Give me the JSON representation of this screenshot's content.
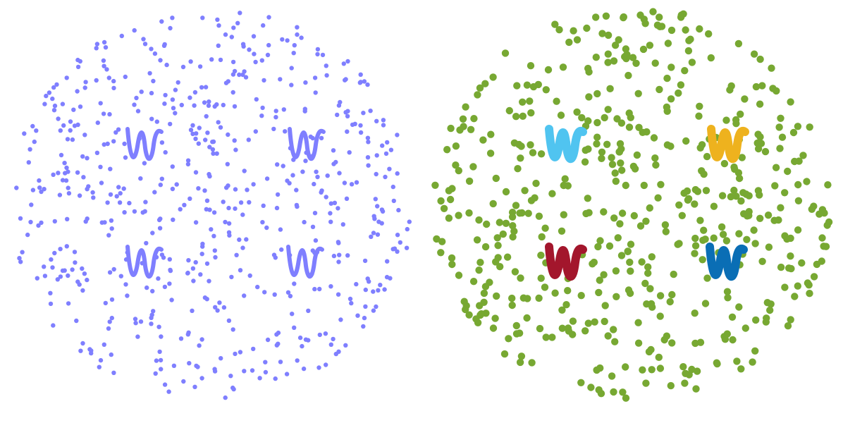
{
  "figure": {
    "panels": [
      {
        "id": "left",
        "description_visible_text": "",
        "dot_color": "#7F7FFF",
        "dot_count": 620,
        "seed": 12345,
        "pattern_color_mode": "uniform",
        "patterns": [
          {
            "color": "#7F7FFF"
          },
          {
            "color": "#7F7FFF"
          },
          {
            "color": "#7F7FFF"
          },
          {
            "color": "#7F7FFF"
          }
        ]
      },
      {
        "id": "right",
        "description_visible_text": "",
        "dot_color": "#77A832",
        "dot_count": 520,
        "seed": 67890,
        "pattern_color_mode": "distinct",
        "patterns": [
          {
            "color": "#50C4F0"
          },
          {
            "color": "#EEB21E"
          },
          {
            "color": "#A3162C"
          },
          {
            "color": "#0A6EB5"
          }
        ]
      }
    ]
  }
}
